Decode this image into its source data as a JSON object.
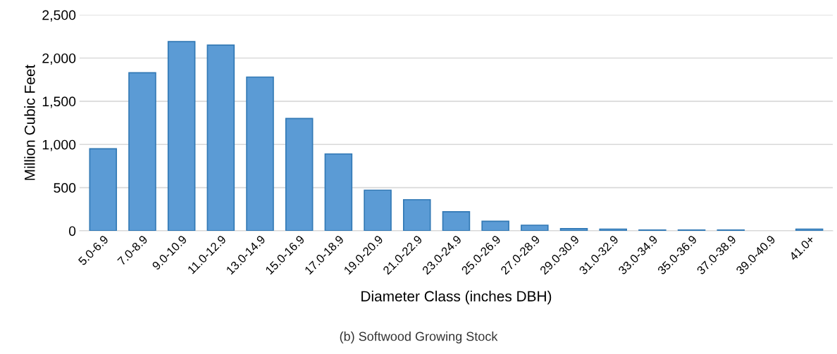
{
  "chart_data": {
    "type": "bar",
    "categories": [
      "5.0-6.9",
      "7.0-8.9",
      "9.0-10.9",
      "11.0-12.9",
      "13.0-14.9",
      "15.0-16.9",
      "17.0-18.9",
      "19.0-20.9",
      "21.0-22.9",
      "23.0-24.9",
      "25.0-26.9",
      "27.0-28.9",
      "29.0-30.9",
      "31.0-32.9",
      "33.0-34.9",
      "35.0-36.9",
      "37.0-38.9",
      "39.0-40.9",
      "41.0+"
    ],
    "values": [
      950,
      1830,
      2190,
      2150,
      1780,
      1300,
      890,
      470,
      360,
      220,
      110,
      65,
      25,
      20,
      10,
      10,
      10,
      null,
      20
    ],
    "color": "#5b9bd5",
    "xlabel": "Diameter Class (inches DBH)",
    "ylabel": "Million Cubic Feet",
    "ylim": [
      0,
      2500
    ],
    "yticks": [
      {
        "value": 0,
        "label": "0"
      },
      {
        "value": 500,
        "label": "500"
      },
      {
        "value": 1000,
        "label": "1,000"
      },
      {
        "value": 1500,
        "label": "1,500"
      },
      {
        "value": 2000,
        "label": "2,000"
      },
      {
        "value": 2500,
        "label": "2,500"
      }
    ],
    "grid": "y",
    "annotations": [
      "(b) Softwood Growing Stock"
    ]
  }
}
